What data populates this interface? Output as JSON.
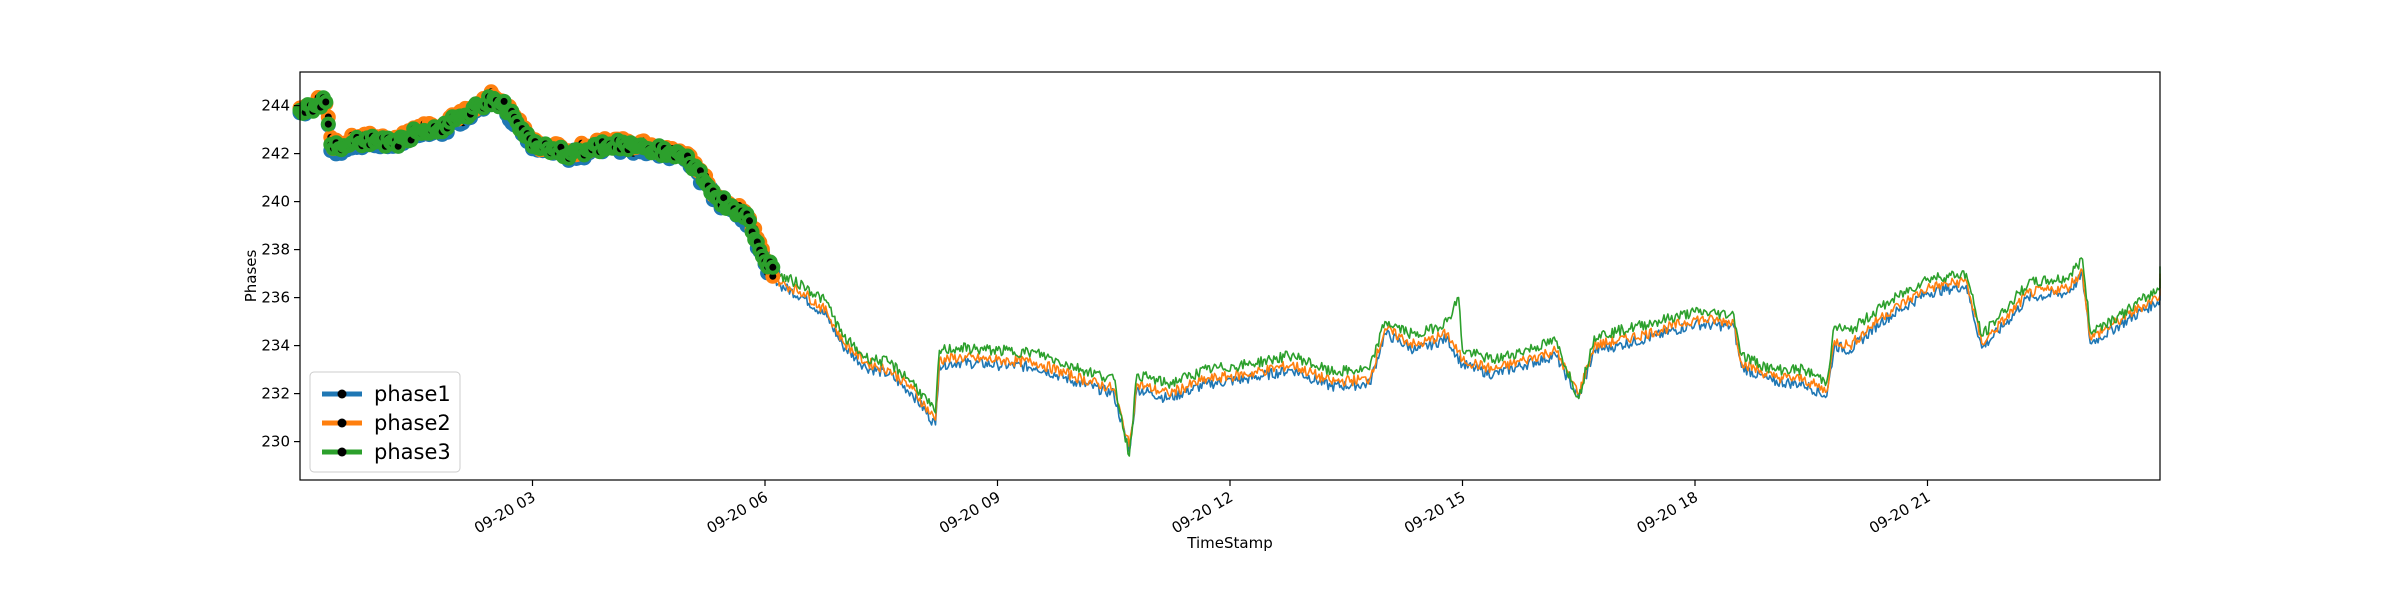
{
  "chart_data": {
    "type": "line",
    "xlabel": "TimeStamp",
    "ylabel": "Phases",
    "x_tick_labels": [
      "09-20 03",
      "09-20 06",
      "09-20 09",
      "09-20 12",
      "09-20 15",
      "09-20 18",
      "09-20 21"
    ],
    "x_ticks_hours": [
      3,
      6,
      9,
      12,
      15,
      18,
      21
    ],
    "x_range_hours": [
      0.0,
      24.0
    ],
    "y_ticks": [
      230,
      232,
      234,
      236,
      238,
      240,
      242,
      244
    ],
    "ylim": [
      228.4,
      245.4
    ],
    "grid": false,
    "legend_position": "lower-left",
    "markers_until_hour": 6.1,
    "series": [
      {
        "name": "phase1",
        "color": "#1f77b4",
        "points": [
          [
            0.0,
            243.7
          ],
          [
            0.2,
            243.9
          ],
          [
            0.35,
            244.1
          ],
          [
            0.38,
            242.3
          ],
          [
            0.5,
            242.1
          ],
          [
            0.7,
            242.4
          ],
          [
            1.0,
            242.5
          ],
          [
            1.2,
            242.3
          ],
          [
            1.5,
            242.8
          ],
          [
            1.8,
            242.9
          ],
          [
            2.0,
            243.3
          ],
          [
            2.3,
            243.9
          ],
          [
            2.5,
            244.2
          ],
          [
            2.6,
            244.0
          ],
          [
            2.8,
            243.2
          ],
          [
            3.0,
            242.2
          ],
          [
            3.5,
            241.9
          ],
          [
            4.0,
            242.3
          ],
          [
            4.5,
            242.1
          ],
          [
            5.0,
            241.8
          ],
          [
            5.2,
            240.8
          ],
          [
            5.4,
            240.0
          ],
          [
            5.6,
            239.6
          ],
          [
            5.8,
            239.1
          ],
          [
            6.0,
            237.4
          ],
          [
            6.2,
            236.5
          ],
          [
            6.5,
            236.0
          ],
          [
            6.8,
            235.2
          ],
          [
            7.0,
            234.0
          ],
          [
            7.3,
            233.1
          ],
          [
            7.6,
            232.8
          ],
          [
            7.9,
            232.0
          ],
          [
            8.2,
            230.7
          ],
          [
            8.25,
            233.2
          ],
          [
            8.5,
            233.3
          ],
          [
            9.0,
            233.2
          ],
          [
            9.5,
            233.1
          ],
          [
            10.0,
            232.5
          ],
          [
            10.5,
            232.0
          ],
          [
            10.7,
            229.6
          ],
          [
            10.8,
            232.2
          ],
          [
            11.2,
            231.8
          ],
          [
            11.7,
            232.4
          ],
          [
            12.2,
            232.6
          ],
          [
            12.8,
            233.0
          ],
          [
            13.3,
            232.3
          ],
          [
            13.8,
            232.4
          ],
          [
            14.0,
            234.5
          ],
          [
            14.4,
            233.8
          ],
          [
            14.8,
            234.3
          ],
          [
            15.0,
            233.2
          ],
          [
            15.4,
            232.8
          ],
          [
            15.8,
            233.2
          ],
          [
            16.2,
            233.6
          ],
          [
            16.5,
            231.8
          ],
          [
            16.7,
            233.8
          ],
          [
            17.0,
            234.0
          ],
          [
            17.5,
            234.4
          ],
          [
            18.0,
            234.9
          ],
          [
            18.5,
            234.8
          ],
          [
            18.6,
            233.1
          ],
          [
            19.0,
            232.5
          ],
          [
            19.4,
            232.4
          ],
          [
            19.7,
            231.9
          ],
          [
            19.8,
            234.0
          ],
          [
            20.0,
            233.8
          ],
          [
            20.4,
            235.0
          ],
          [
            21.0,
            236.2
          ],
          [
            21.5,
            236.5
          ],
          [
            21.7,
            233.9
          ],
          [
            22.0,
            234.9
          ],
          [
            22.3,
            236.0
          ],
          [
            22.8,
            236.2
          ],
          [
            23.0,
            236.9
          ],
          [
            23.1,
            234.1
          ],
          [
            23.5,
            234.9
          ],
          [
            24.0,
            235.9
          ],
          [
            24.0,
            236.8
          ]
        ]
      },
      {
        "name": "phase2",
        "color": "#ff7f0e",
        "points": [
          [
            0.0,
            243.9
          ],
          [
            0.2,
            244.1
          ],
          [
            0.35,
            244.3
          ],
          [
            0.38,
            242.5
          ],
          [
            0.5,
            242.3
          ],
          [
            0.7,
            242.6
          ],
          [
            1.0,
            242.7
          ],
          [
            1.2,
            242.5
          ],
          [
            1.5,
            243.0
          ],
          [
            1.8,
            243.1
          ],
          [
            2.0,
            243.5
          ],
          [
            2.3,
            244.1
          ],
          [
            2.5,
            244.4
          ],
          [
            2.6,
            244.2
          ],
          [
            2.8,
            243.4
          ],
          [
            3.0,
            242.4
          ],
          [
            3.5,
            242.1
          ],
          [
            4.0,
            242.5
          ],
          [
            4.5,
            242.3
          ],
          [
            5.0,
            242.0
          ],
          [
            5.2,
            241.0
          ],
          [
            5.4,
            240.2
          ],
          [
            5.6,
            239.8
          ],
          [
            5.8,
            239.3
          ],
          [
            6.0,
            237.6
          ],
          [
            6.2,
            236.6
          ],
          [
            6.5,
            236.2
          ],
          [
            6.8,
            235.4
          ],
          [
            7.0,
            234.2
          ],
          [
            7.3,
            233.3
          ],
          [
            7.6,
            233.0
          ],
          [
            7.9,
            232.2
          ],
          [
            8.2,
            230.9
          ],
          [
            8.25,
            233.4
          ],
          [
            8.5,
            233.5
          ],
          [
            9.0,
            233.4
          ],
          [
            9.5,
            233.3
          ],
          [
            10.0,
            232.7
          ],
          [
            10.5,
            232.2
          ],
          [
            10.7,
            229.8
          ],
          [
            10.8,
            232.4
          ],
          [
            11.2,
            232.0
          ],
          [
            11.7,
            232.6
          ],
          [
            12.2,
            232.8
          ],
          [
            12.8,
            233.2
          ],
          [
            13.3,
            232.5
          ],
          [
            13.8,
            232.6
          ],
          [
            14.0,
            234.7
          ],
          [
            14.4,
            234.0
          ],
          [
            14.8,
            234.5
          ],
          [
            15.0,
            233.4
          ],
          [
            15.4,
            233.0
          ],
          [
            15.8,
            233.4
          ],
          [
            16.2,
            233.8
          ],
          [
            16.5,
            232.0
          ],
          [
            16.7,
            234.0
          ],
          [
            17.0,
            234.2
          ],
          [
            17.5,
            234.6
          ],
          [
            18.0,
            235.1
          ],
          [
            18.5,
            235.0
          ],
          [
            18.6,
            233.3
          ],
          [
            19.0,
            232.7
          ],
          [
            19.4,
            232.6
          ],
          [
            19.7,
            232.1
          ],
          [
            19.8,
            234.2
          ],
          [
            20.0,
            234.0
          ],
          [
            20.4,
            235.2
          ],
          [
            21.0,
            236.4
          ],
          [
            21.5,
            236.7
          ],
          [
            21.7,
            234.1
          ],
          [
            22.0,
            235.1
          ],
          [
            22.3,
            236.2
          ],
          [
            22.8,
            236.4
          ],
          [
            23.0,
            237.1
          ],
          [
            23.1,
            234.3
          ],
          [
            23.5,
            235.1
          ],
          [
            24.0,
            236.1
          ],
          [
            24.0,
            237.0
          ]
        ]
      },
      {
        "name": "phase3",
        "color": "#2ca02c",
        "points": [
          [
            0.0,
            243.8
          ],
          [
            0.2,
            244.0
          ],
          [
            0.35,
            244.2
          ],
          [
            0.38,
            242.4
          ],
          [
            0.5,
            242.2
          ],
          [
            0.7,
            242.5
          ],
          [
            1.0,
            242.6
          ],
          [
            1.2,
            242.4
          ],
          [
            1.5,
            242.9
          ],
          [
            1.8,
            243.0
          ],
          [
            2.0,
            243.4
          ],
          [
            2.3,
            244.0
          ],
          [
            2.5,
            244.3
          ],
          [
            2.6,
            244.1
          ],
          [
            2.8,
            243.3
          ],
          [
            3.0,
            242.3
          ],
          [
            3.5,
            242.0
          ],
          [
            4.0,
            242.4
          ],
          [
            4.5,
            242.2
          ],
          [
            5.0,
            241.9
          ],
          [
            5.2,
            240.9
          ],
          [
            5.4,
            240.1
          ],
          [
            5.6,
            239.7
          ],
          [
            5.8,
            239.2
          ],
          [
            6.0,
            237.5
          ],
          [
            6.2,
            236.9
          ],
          [
            6.5,
            236.5
          ],
          [
            6.8,
            235.8
          ],
          [
            7.0,
            234.4
          ],
          [
            7.3,
            233.5
          ],
          [
            7.6,
            233.3
          ],
          [
            7.9,
            232.5
          ],
          [
            8.2,
            231.2
          ],
          [
            8.25,
            233.8
          ],
          [
            8.5,
            233.9
          ],
          [
            9.0,
            233.8
          ],
          [
            9.5,
            233.7
          ],
          [
            10.0,
            233.1
          ],
          [
            10.5,
            232.6
          ],
          [
            10.7,
            229.4
          ],
          [
            10.8,
            232.8
          ],
          [
            11.2,
            232.4
          ],
          [
            11.7,
            233.0
          ],
          [
            12.2,
            233.2
          ],
          [
            12.8,
            233.6
          ],
          [
            13.3,
            232.9
          ],
          [
            13.8,
            233.0
          ],
          [
            14.0,
            235.0
          ],
          [
            14.4,
            234.4
          ],
          [
            14.8,
            235.0
          ],
          [
            14.95,
            236.0
          ],
          [
            15.0,
            233.8
          ],
          [
            15.4,
            233.4
          ],
          [
            15.8,
            233.8
          ],
          [
            16.2,
            234.2
          ],
          [
            16.5,
            231.8
          ],
          [
            16.7,
            234.4
          ],
          [
            17.0,
            234.6
          ],
          [
            17.5,
            235.0
          ],
          [
            18.0,
            235.4
          ],
          [
            18.5,
            235.3
          ],
          [
            18.6,
            233.6
          ],
          [
            19.0,
            233.0
          ],
          [
            19.4,
            233.0
          ],
          [
            19.7,
            232.5
          ],
          [
            19.8,
            234.8
          ],
          [
            20.0,
            234.6
          ],
          [
            20.4,
            235.6
          ],
          [
            21.0,
            236.8
          ],
          [
            21.5,
            237.0
          ],
          [
            21.7,
            234.4
          ],
          [
            22.0,
            235.5
          ],
          [
            22.3,
            236.6
          ],
          [
            22.8,
            236.8
          ],
          [
            23.0,
            237.6
          ],
          [
            23.1,
            234.6
          ],
          [
            23.5,
            235.3
          ],
          [
            24.0,
            236.4
          ],
          [
            24.0,
            237.3
          ]
        ]
      }
    ]
  }
}
